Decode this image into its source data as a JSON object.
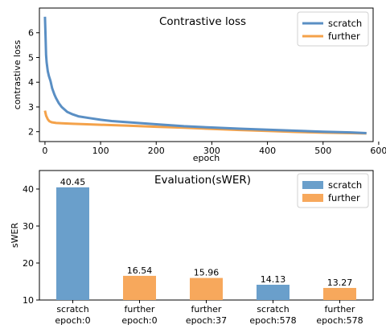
{
  "charts": [
    {
      "type": "line",
      "title": "Contrastive loss",
      "xlabel": "epoch",
      "ylabel": "contrastive loss",
      "xlim": [
        -10,
        590
      ],
      "ylim": [
        1.6,
        7.0
      ],
      "xticks": [
        0,
        100,
        200,
        300,
        400,
        500,
        600
      ],
      "yticks": [
        2,
        3,
        4,
        5,
        6
      ],
      "legend_position": "top-right",
      "series": [
        {
          "name": "scratch",
          "color": "#5a8fc4",
          "x": [
            0,
            1,
            2,
            3,
            5,
            7,
            10,
            13,
            17,
            20,
            25,
            30,
            40,
            50,
            60,
            80,
            100,
            120,
            150,
            200,
            250,
            300,
            350,
            400,
            450,
            500,
            550,
            578
          ],
          "y": [
            6.65,
            5.9,
            5.1,
            4.8,
            4.45,
            4.25,
            4.05,
            3.75,
            3.5,
            3.35,
            3.15,
            3.0,
            2.8,
            2.7,
            2.62,
            2.55,
            2.48,
            2.43,
            2.38,
            2.3,
            2.22,
            2.17,
            2.12,
            2.08,
            2.04,
            2.0,
            1.97,
            1.94
          ]
        },
        {
          "name": "further",
          "color": "#f4a24a",
          "x": [
            0,
            2,
            5,
            8,
            12,
            20,
            30,
            50,
            75,
            100,
            150,
            200,
            250,
            300,
            350,
            400,
            450,
            500,
            550,
            578
          ],
          "y": [
            2.85,
            2.65,
            2.5,
            2.42,
            2.38,
            2.35,
            2.34,
            2.32,
            2.3,
            2.28,
            2.24,
            2.2,
            2.16,
            2.11,
            2.07,
            2.03,
            1.99,
            1.96,
            1.94,
            1.93
          ]
        }
      ]
    },
    {
      "type": "bar",
      "title": "Evaluation(sWER)",
      "ylabel": "sWER",
      "ylim": [
        10,
        45
      ],
      "yticks": [
        10,
        20,
        30,
        40
      ],
      "legend_position": "top-right",
      "categories": [
        [
          "scratch",
          "epoch:0"
        ],
        [
          "further",
          "epoch:0"
        ],
        [
          "further",
          "epoch:37"
        ],
        [
          "scratch",
          "epoch:578"
        ],
        [
          "further",
          "epoch:578"
        ]
      ],
      "values": [
        40.45,
        16.54,
        15.96,
        14.13,
        13.27
      ],
      "value_labels": [
        "40.45",
        "16.54",
        "15.96",
        "14.13",
        "13.27"
      ],
      "bar_series": [
        "scratch",
        "further",
        "further",
        "scratch",
        "further"
      ],
      "legend": [
        {
          "name": "scratch",
          "color": "#6a9fcb"
        },
        {
          "name": "further",
          "color": "#f7a85c"
        }
      ]
    }
  ]
}
